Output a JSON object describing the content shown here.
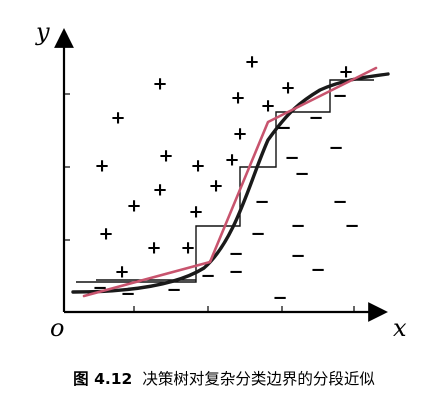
{
  "diagram": {
    "axis_labels": {
      "y": "y",
      "x": "x",
      "origin": "o"
    },
    "positive_symbol": "+",
    "negative_symbol": "−",
    "y_tick_count": 3,
    "colors": {
      "axes": "#000000",
      "true_boundary": "#1a1a1a",
      "staircase": "#111111",
      "piecewise_linear": "#c8546e"
    }
  },
  "caption": {
    "label": "图 4.12",
    "text": "决策树对复杂分类边界的分段近似"
  }
}
